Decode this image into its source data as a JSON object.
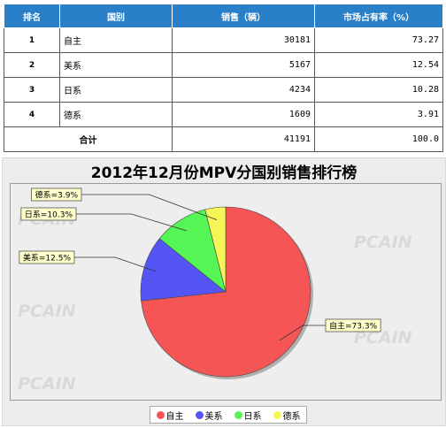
{
  "table": {
    "headers": [
      "排名",
      "国别",
      "销售（辆）",
      "市场占有率（%）"
    ],
    "rows": [
      {
        "rank": "1",
        "country": "自主",
        "sales": "30181",
        "share": "73.27"
      },
      {
        "rank": "2",
        "country": "美系",
        "sales": "5167",
        "share": "12.54"
      },
      {
        "rank": "3",
        "country": "日系",
        "sales": "4234",
        "share": "10.28"
      },
      {
        "rank": "4",
        "country": "德系",
        "sales": "1609",
        "share": "3.91"
      }
    ],
    "total": {
      "label": "合计",
      "sales": "41191",
      "share": "100.0"
    }
  },
  "watermark": "PCAIN",
  "chart_data": {
    "type": "pie",
    "title": "2012年12月份MPV分国别销售排行榜",
    "categories": [
      "自主",
      "美系",
      "日系",
      "德系"
    ],
    "values": [
      73.3,
      12.5,
      10.3,
      3.9
    ],
    "labels": [
      "自主=73.3%",
      "美系=12.5%",
      "日系=10.3%",
      "德系=3.9%"
    ],
    "colors": [
      "#f55555",
      "#5555f5",
      "#55f555",
      "#f5f555"
    ],
    "legend": "bottom"
  }
}
